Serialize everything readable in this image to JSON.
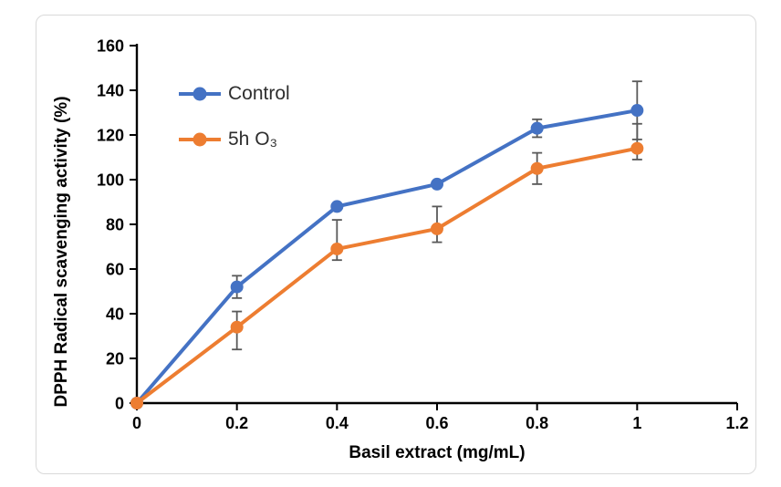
{
  "chart_data": {
    "type": "line",
    "title": "",
    "xlabel": "Basil extract (mg/mL)",
    "ylabel": "DPPH Radical scavenging activity (%)",
    "x": [
      0,
      0.2,
      0.4,
      0.6,
      0.8,
      1
    ],
    "series": [
      {
        "name": "Control",
        "color": "#4472C4",
        "values": [
          0,
          52,
          88,
          98,
          123,
          131
        ],
        "err_up": [
          0,
          5,
          0,
          0,
          4,
          13
        ],
        "err_down": [
          0,
          5,
          0,
          0,
          4,
          13
        ]
      },
      {
        "name": "5h O₃",
        "color": "#ED7D31",
        "values": [
          0,
          34,
          69,
          78,
          105,
          114
        ],
        "err_up": [
          0,
          7,
          13,
          10,
          7,
          11
        ],
        "err_down": [
          0,
          10,
          5,
          6,
          7,
          5
        ]
      }
    ],
    "xlim": [
      0,
      1.2
    ],
    "ylim": [
      0,
      160
    ],
    "x_ticks": [
      "0",
      "0.2",
      "0.4",
      "0.6",
      "0.8",
      "1",
      "1.2"
    ],
    "y_ticks": [
      "0",
      "20",
      "40",
      "60",
      "80",
      "100",
      "120",
      "140",
      "160"
    ],
    "y_tick_step": 20,
    "grid": false,
    "legend_position": "upper-left-inside",
    "error_bar_color": "#595959",
    "axis_color": "#000000",
    "frame_border_color": "#D9D9D9",
    "marker": "circle"
  }
}
